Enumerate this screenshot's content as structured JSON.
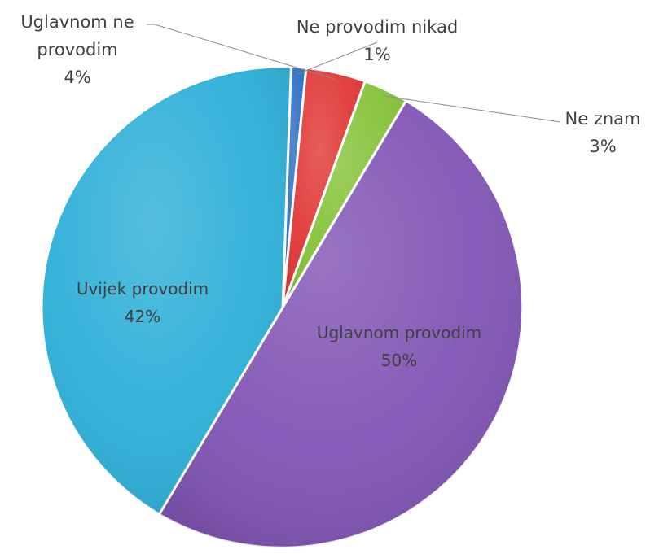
{
  "chart_data": {
    "type": "pie",
    "title": "",
    "slices": [
      {
        "label": "Ne provodim nikad",
        "value": 1,
        "value_label": "1%",
        "color": "#2e6fc4"
      },
      {
        "label": "Uglavnom ne provodim",
        "value": 4,
        "value_label": "4%",
        "color": "#e03a38"
      },
      {
        "label": "Ne znam",
        "value": 3,
        "value_label": "3%",
        "color": "#86c33a"
      },
      {
        "label": "Uglavnom provodim",
        "value": 50,
        "value_label": "50%",
        "color": "#8156b5"
      },
      {
        "label": "Uvijek provodim",
        "value": 42,
        "value_label": "42%",
        "color": "#2fb0d8"
      }
    ],
    "label_lines": {
      "Uglavnom ne provodim": [
        "Uglavnom ne",
        "provodim"
      ]
    },
    "legend": "none"
  }
}
